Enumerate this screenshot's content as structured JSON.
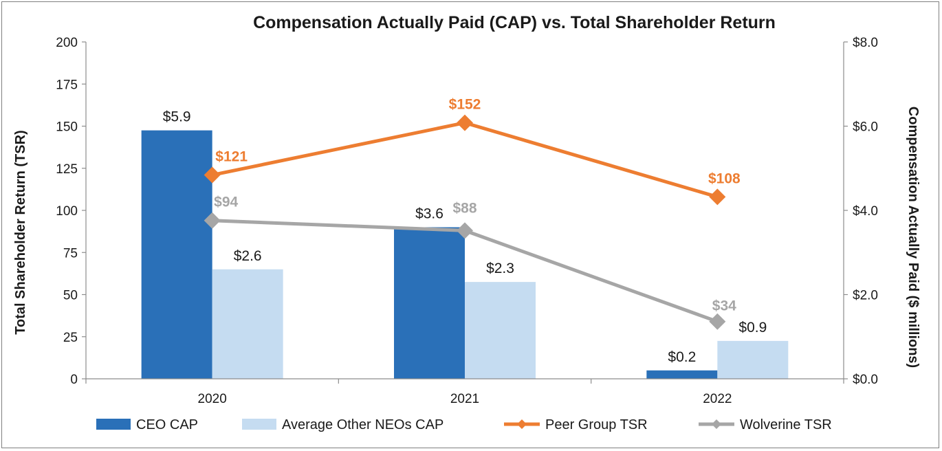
{
  "chart_data": {
    "type": "bar+line",
    "title": "Compensation Actually Paid (CAP) vs. Total Shareholder Return",
    "categories": [
      "2020",
      "2021",
      "2022"
    ],
    "ylabel_left": "Total Shareholder Return (TSR)",
    "ylabel_right": "Compensation Actually Paid ($ millions)",
    "ylim_left": [
      0,
      200
    ],
    "yticks_left": [
      "0",
      "25",
      "50",
      "75",
      "100",
      "125",
      "150",
      "175",
      "200"
    ],
    "ylim_right": [
      0,
      8
    ],
    "yticks_right": [
      "$0.0",
      "$2.0",
      "$4.0",
      "$6.0",
      "$8.0"
    ],
    "bar_series": [
      {
        "name": "CEO CAP",
        "axis": "right",
        "color": "#2a70b8",
        "values": [
          5.9,
          3.6,
          0.2
        ],
        "labels": [
          "$5.9",
          "$3.6",
          "$0.2"
        ]
      },
      {
        "name": "Average Other NEOs CAP",
        "axis": "right",
        "color": "#c5dcf1",
        "values": [
          2.6,
          2.3,
          0.9
        ],
        "labels": [
          "$2.6",
          "$2.3",
          "$0.9"
        ]
      }
    ],
    "line_series": [
      {
        "name": "Peer Group TSR",
        "axis": "left",
        "color": "#ed7d31",
        "values": [
          121,
          152,
          108
        ],
        "labels": [
          "$121",
          "$152",
          "$108"
        ]
      },
      {
        "name": "Wolverine TSR",
        "axis": "left",
        "color": "#a6a6a6",
        "values": [
          94,
          88,
          34
        ],
        "labels": [
          "$94",
          "$88",
          "$34"
        ]
      }
    ],
    "legend_position": "bottom"
  }
}
